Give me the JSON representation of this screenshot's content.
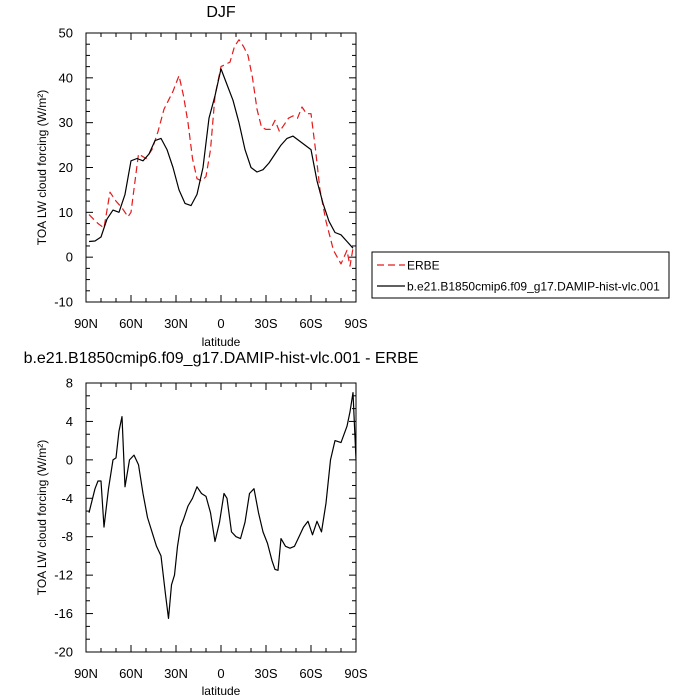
{
  "chart_data": [
    {
      "type": "line",
      "title": "DJF",
      "xlabel": "latitude",
      "ylabel": "TOA LW cloud forcing (W/m²)",
      "xlim": [
        90,
        -90
      ],
      "ylim": [
        -10,
        50
      ],
      "x_ticks": [
        90,
        60,
        30,
        0,
        -30,
        -60,
        -90
      ],
      "x_tick_labels": [
        "90N",
        "60N",
        "30N",
        "0",
        "30S",
        "60S",
        "90S"
      ],
      "y_ticks": [
        -10,
        0,
        10,
        20,
        30,
        40,
        50
      ],
      "y_tick_labels": [
        "-10",
        "0",
        "10",
        "20",
        "30",
        "40",
        "50"
      ],
      "grid": false,
      "legend_position": "right",
      "series": [
        {
          "name": "ERBE",
          "color": "#e41a1c",
          "dash": "dashed",
          "x": [
            88,
            82,
            78,
            74,
            70,
            66,
            62,
            60,
            55,
            50,
            46,
            42,
            38,
            35,
            32,
            28,
            25,
            22,
            19,
            16,
            13,
            10,
            7,
            4,
            0,
            -3,
            -6,
            -9,
            -12,
            -15,
            -18,
            -21,
            -24,
            -27,
            -30,
            -33,
            -36,
            -39,
            -42,
            -45,
            -48,
            -51,
            -54,
            -57,
            -60,
            -63,
            -66,
            -70,
            -75,
            -80,
            -84,
            -86,
            -88
          ],
          "y": [
            9.5,
            7.5,
            6.5,
            14.5,
            12.5,
            11,
            9,
            10,
            23,
            22,
            24,
            28,
            33,
            35,
            37,
            40.5,
            36,
            30,
            22,
            17.5,
            17,
            18,
            24,
            36,
            42.5,
            43,
            43.5,
            47,
            48.5,
            47,
            45,
            40,
            33,
            29,
            28.5,
            28.5,
            30.5,
            28,
            29.5,
            31,
            31.5,
            31,
            33.5,
            32,
            32,
            24,
            15,
            8,
            1.5,
            -1.5,
            1.5,
            -2,
            2
          ]
        },
        {
          "name": "b.e21.B1850cmip6.f09_g17.DAMIP-hist-vlc.001",
          "color": "#000000",
          "dash": "solid",
          "x": [
            88,
            84,
            80,
            76,
            72,
            68,
            64,
            60,
            56,
            52,
            48,
            44,
            40,
            36,
            32,
            28,
            24,
            20,
            16,
            12,
            8,
            4,
            0,
            -4,
            -8,
            -12,
            -16,
            -20,
            -24,
            -28,
            -32,
            -36,
            -40,
            -44,
            -48,
            -52,
            -56,
            -60,
            -64,
            -68,
            -72,
            -76,
            -80,
            -84,
            -88
          ],
          "y": [
            3.5,
            3.6,
            4.5,
            8.5,
            10.5,
            10,
            14,
            21.5,
            22,
            21.5,
            23,
            26,
            26.5,
            24,
            20,
            15,
            12,
            11.5,
            14,
            20,
            31,
            36,
            42,
            38.5,
            35,
            30,
            24,
            20,
            19,
            19.5,
            21,
            23,
            25,
            26.5,
            27,
            26,
            25,
            24,
            17,
            12,
            8,
            5.5,
            5,
            3.5,
            2
          ]
        }
      ]
    },
    {
      "type": "line",
      "title": "b.e21.B1850cmip6.f09_g17.DAMIP-hist-vlc.001 - ERBE",
      "xlabel": "latitude",
      "ylabel": "TOA LW cloud forcing (W/m²)",
      "xlim": [
        90,
        -90
      ],
      "ylim": [
        -20,
        8
      ],
      "x_ticks": [
        90,
        60,
        30,
        0,
        -30,
        -60,
        -90
      ],
      "x_tick_labels": [
        "90N",
        "60N",
        "30N",
        "0",
        "30S",
        "60S",
        "90S"
      ],
      "y_ticks": [
        -20,
        -16,
        -12,
        -8,
        -4,
        0,
        4,
        8
      ],
      "y_tick_labels": [
        "-20",
        "-16",
        "-12",
        "-8",
        "-4",
        "0",
        "4",
        "8"
      ],
      "grid": false,
      "series": [
        {
          "color": "#000000",
          "dash": "solid",
          "x": [
            88,
            84,
            82,
            80,
            78,
            75,
            72,
            70,
            68,
            66,
            64,
            61,
            58,
            55,
            52,
            49,
            46,
            43,
            40,
            37,
            35,
            33,
            31,
            29,
            27,
            25,
            22,
            19,
            16,
            13,
            10,
            7,
            4,
            1,
            -2,
            -4,
            -7,
            -10,
            -13,
            -16,
            -19,
            -22,
            -25,
            -28,
            -31,
            -34,
            -36,
            -38,
            -40,
            -43,
            -46,
            -49,
            -52,
            -55,
            -58,
            -61,
            -64,
            -67,
            -70,
            -73,
            -76,
            -80,
            -84,
            -86,
            -88,
            -90
          ],
          "y": [
            -5.5,
            -3,
            -2.2,
            -2.2,
            -7,
            -3,
            0,
            0.2,
            3,
            4.5,
            -2.8,
            0,
            0.5,
            -0.5,
            -3.5,
            -6,
            -7.5,
            -9,
            -10,
            -14,
            -16.5,
            -13,
            -12,
            -9,
            -7,
            -6.2,
            -4.8,
            -4,
            -2.8,
            -3.5,
            -3.8,
            -5.5,
            -8.5,
            -6.5,
            -3.5,
            -4,
            -7.5,
            -8,
            -8.2,
            -6.5,
            -3.5,
            -3,
            -5.5,
            -7.5,
            -8.7,
            -10.5,
            -11.4,
            -11.5,
            -8.2,
            -9,
            -9.2,
            -9,
            -8,
            -7,
            -6.4,
            -7.8,
            -6.4,
            -7.5,
            -4.5,
            0,
            2,
            1.8,
            3.5,
            5,
            7,
            0
          ]
        }
      ]
    }
  ]
}
